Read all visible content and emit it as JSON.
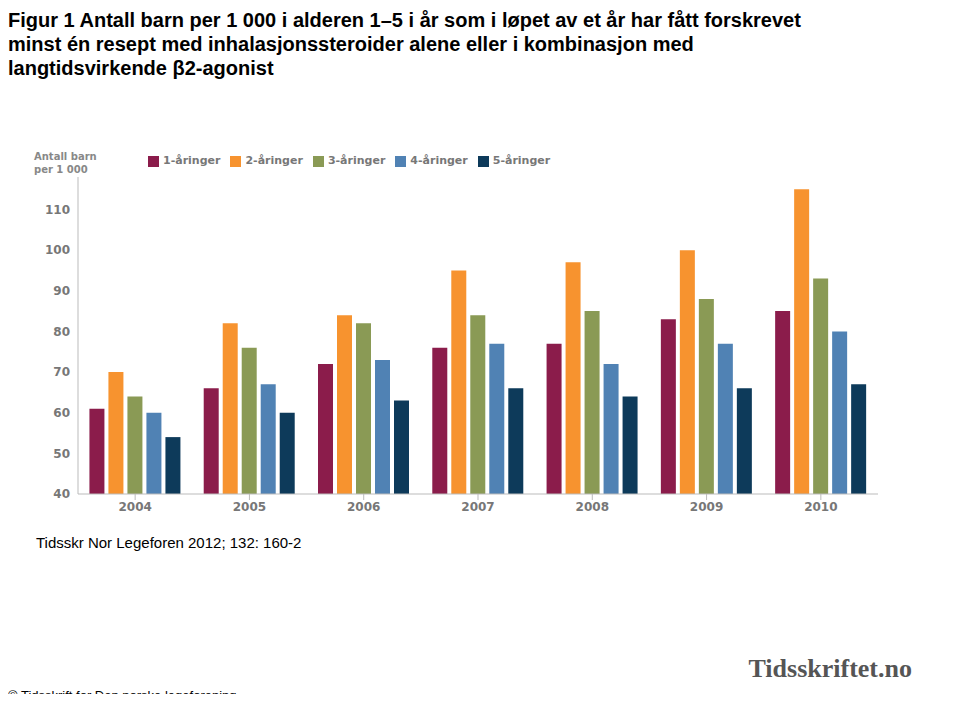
{
  "chart_data": {
    "type": "bar",
    "title": "Figur 1  Antall  barn per 1 000 i alderen 1–5 i år  som i løpet av et år har fått forskrevet  minst én resept med inhalasjonssteroider alene eller i  kombinasjon med langtidsvirkende β2-agonist",
    "y_label": "Antall barn per 1 000",
    "categories": [
      "2004",
      "2005",
      "2006",
      "2007",
      "2008",
      "2009",
      "2010"
    ],
    "series": [
      {
        "name": "1-åringer",
        "color": "#8b1c4b",
        "values": [
          61,
          66,
          72,
          76,
          77,
          83,
          85
        ]
      },
      {
        "name": "2-åringer",
        "color": "#f7932f",
        "values": [
          70,
          82,
          84,
          95,
          97,
          100,
          115
        ]
      },
      {
        "name": "3-åringer",
        "color": "#8a9a55",
        "values": [
          64,
          76,
          82,
          84,
          85,
          88,
          93
        ]
      },
      {
        "name": "4-åringer",
        "color": "#5082b4",
        "values": [
          60,
          67,
          73,
          77,
          72,
          77,
          80
        ]
      },
      {
        "name": "5-åringer",
        "color": "#0d3a5a",
        "values": [
          54,
          60,
          63,
          66,
          64,
          66,
          67
        ]
      }
    ],
    "ylim": [
      40,
      118
    ],
    "yticks": [
      40,
      50,
      60,
      70,
      80,
      90,
      100,
      110
    ],
    "grid": false,
    "legend": "top",
    "source": "Tidsskr Nor Legeforen 2012; 132: 160-2",
    "copyright": "© Tidsskrift for Den norske legeforening",
    "logo_text": "Tidsskriftet.no"
  }
}
